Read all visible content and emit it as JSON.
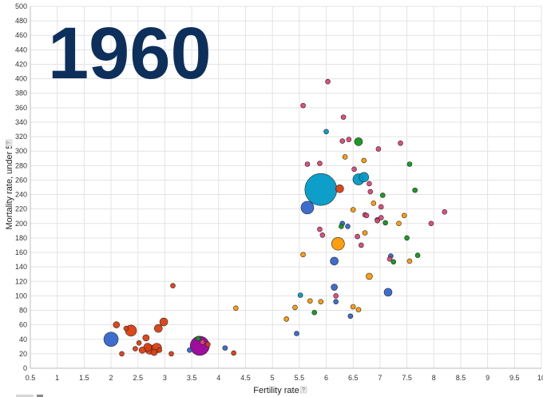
{
  "chart_data": {
    "type": "scatter",
    "year_label": "1960",
    "xlabel": "Fertility rate",
    "ylabel": "Mortality rate, under 5",
    "help_marker": "?",
    "xlim": [
      0.5,
      10
    ],
    "ylim": [
      0,
      500
    ],
    "x_ticks": [
      "0.5",
      "1",
      "1.5",
      "2",
      "2.5",
      "3",
      "3.5",
      "4",
      "4.5",
      "5",
      "5.5",
      "6",
      "6.5",
      "7",
      "7.5",
      "8",
      "8.5",
      "9",
      "9.5",
      "10"
    ],
    "y_ticks": [
      "0",
      "20",
      "40",
      "60",
      "80",
      "100",
      "120",
      "140",
      "160",
      "180",
      "200",
      "220",
      "240",
      "260",
      "280",
      "300",
      "320",
      "340",
      "360",
      "380",
      "400",
      "420",
      "440",
      "460",
      "480",
      "500"
    ],
    "grid": true,
    "colors": {
      "europe": "#dd3d0e",
      "americas": "#3366cc",
      "east_asia": "#0099c6",
      "south_asia": "#990099",
      "sub_saharan_africa": "#dd4477",
      "middle_east_north_africa": "#ff9900",
      "mena_green": "#109618",
      "year": "#0d2f5c"
    },
    "points": [
      {
        "x": 5.9,
        "y": 247,
        "size": 20,
        "color": "#0099c6"
      },
      {
        "x": 3.65,
        "y": 31,
        "size": 12,
        "color": "#990099"
      },
      {
        "x": 2.0,
        "y": 40,
        "size": 9,
        "color": "#3366cc"
      },
      {
        "x": 5.65,
        "y": 222,
        "size": 8,
        "color": "#3366cc"
      },
      {
        "x": 6.6,
        "y": 261,
        "size": 7,
        "color": "#0099c6"
      },
      {
        "x": 6.7,
        "y": 264,
        "size": 6,
        "color": "#0099c6"
      },
      {
        "x": 6.22,
        "y": 172,
        "size": 8,
        "color": "#ff9900"
      },
      {
        "x": 2.37,
        "y": 52,
        "size": 7,
        "color": "#dd3d0e"
      },
      {
        "x": 2.72,
        "y": 26,
        "size": 6,
        "color": "#dd3d0e"
      },
      {
        "x": 2.85,
        "y": 28,
        "size": 6,
        "color": "#dd3d0e"
      },
      {
        "x": 2.98,
        "y": 64,
        "size": 5,
        "color": "#dd3d0e"
      },
      {
        "x": 2.88,
        "y": 55,
        "size": 5,
        "color": "#dd3d0e"
      },
      {
        "x": 2.1,
        "y": 60,
        "size": 4,
        "color": "#dd3d0e"
      },
      {
        "x": 2.2,
        "y": 20,
        "size": 3,
        "color": "#dd3d0e"
      },
      {
        "x": 2.28,
        "y": 55,
        "size": 3,
        "color": "#dd3d0e"
      },
      {
        "x": 2.45,
        "y": 27,
        "size": 3,
        "color": "#dd3d0e"
      },
      {
        "x": 2.52,
        "y": 35,
        "size": 3,
        "color": "#dd3d0e"
      },
      {
        "x": 2.58,
        "y": 25,
        "size": 4,
        "color": "#dd3d0e"
      },
      {
        "x": 2.65,
        "y": 42,
        "size": 4,
        "color": "#dd3d0e"
      },
      {
        "x": 2.68,
        "y": 29,
        "size": 5,
        "color": "#dd3d0e"
      },
      {
        "x": 2.8,
        "y": 22,
        "size": 4,
        "color": "#dd3d0e"
      },
      {
        "x": 2.9,
        "y": 25,
        "size": 3,
        "color": "#dd3d0e"
      },
      {
        "x": 3.15,
        "y": 114,
        "size": 3,
        "color": "#dd3d0e"
      },
      {
        "x": 3.12,
        "y": 20,
        "size": 3,
        "color": "#dd3d0e"
      },
      {
        "x": 4.28,
        "y": 21,
        "size": 3,
        "color": "#dd3d0e"
      },
      {
        "x": 6.25,
        "y": 248,
        "size": 5,
        "color": "#dd3d0e"
      },
      {
        "x": 3.8,
        "y": 33,
        "size": 3,
        "color": "#dd3d0e"
      },
      {
        "x": 3.7,
        "y": 36,
        "size": 3,
        "color": "#dd4477"
      },
      {
        "x": 3.62,
        "y": 41,
        "size": 3,
        "color": "#109618"
      },
      {
        "x": 3.46,
        "y": 25,
        "size": 3,
        "color": "#3366cc"
      },
      {
        "x": 4.12,
        "y": 28,
        "size": 3,
        "color": "#3366cc"
      },
      {
        "x": 4.32,
        "y": 83,
        "size": 3,
        "color": "#ff9900"
      },
      {
        "x": 5.26,
        "y": 68,
        "size": 3,
        "color": "#ff9900"
      },
      {
        "x": 5.42,
        "y": 84,
        "size": 3,
        "color": "#ff9900"
      },
      {
        "x": 5.45,
        "y": 48,
        "size": 3,
        "color": "#3366cc"
      },
      {
        "x": 5.52,
        "y": 101,
        "size": 3,
        "color": "#0099c6"
      },
      {
        "x": 5.57,
        "y": 157,
        "size": 3,
        "color": "#ff9900"
      },
      {
        "x": 5.7,
        "y": 93,
        "size": 3,
        "color": "#ff9900"
      },
      {
        "x": 5.78,
        "y": 77,
        "size": 3,
        "color": "#109618"
      },
      {
        "x": 5.9,
        "y": 92,
        "size": 3,
        "color": "#ff9900"
      },
      {
        "x": 6.0,
        "y": 327,
        "size": 3,
        "color": "#0099c6"
      },
      {
        "x": 6.15,
        "y": 148,
        "size": 5,
        "color": "#3366cc"
      },
      {
        "x": 6.15,
        "y": 112,
        "size": 4,
        "color": "#3366cc"
      },
      {
        "x": 6.18,
        "y": 100,
        "size": 3,
        "color": "#dd4477"
      },
      {
        "x": 6.18,
        "y": 92,
        "size": 3,
        "color": "#3366cc"
      },
      {
        "x": 6.3,
        "y": 200,
        "size": 3,
        "color": "#3366cc"
      },
      {
        "x": 6.28,
        "y": 196,
        "size": 3,
        "color": "#109618"
      },
      {
        "x": 6.4,
        "y": 196,
        "size": 3,
        "color": "#3366cc"
      },
      {
        "x": 6.45,
        "y": 72,
        "size": 3,
        "color": "#3366cc"
      },
      {
        "x": 6.5,
        "y": 85,
        "size": 3,
        "color": "#ff9900"
      },
      {
        "x": 6.6,
        "y": 81,
        "size": 3,
        "color": "#ff9900"
      },
      {
        "x": 6.6,
        "y": 313,
        "size": 5,
        "color": "#109618"
      },
      {
        "x": 6.8,
        "y": 127,
        "size": 4,
        "color": "#ff9900"
      },
      {
        "x": 7.15,
        "y": 105,
        "size": 5,
        "color": "#3366cc"
      },
      {
        "x": 7.25,
        "y": 147,
        "size": 3,
        "color": "#109618"
      },
      {
        "x": 7.5,
        "y": 180,
        "size": 3,
        "color": "#109618"
      },
      {
        "x": 7.55,
        "y": 282,
        "size": 3,
        "color": "#109618"
      },
      {
        "x": 7.65,
        "y": 246,
        "size": 3,
        "color": "#109618"
      },
      {
        "x": 7.7,
        "y": 156,
        "size": 3,
        "color": "#109618"
      },
      {
        "x": 7.05,
        "y": 239,
        "size": 3,
        "color": "#109618"
      },
      {
        "x": 7.1,
        "y": 201,
        "size": 3,
        "color": "#109618"
      },
      {
        "x": 6.95,
        "y": 205,
        "size": 3,
        "color": "#109618"
      },
      {
        "x": 7.2,
        "y": 155,
        "size": 3,
        "color": "#3366cc"
      },
      {
        "x": 7.55,
        "y": 148,
        "size": 3,
        "color": "#ff9900"
      },
      {
        "x": 7.35,
        "y": 200,
        "size": 3,
        "color": "#ff9900"
      },
      {
        "x": 7.45,
        "y": 211,
        "size": 3,
        "color": "#ff9900"
      },
      {
        "x": 6.35,
        "y": 292,
        "size": 3,
        "color": "#ff9900"
      },
      {
        "x": 6.5,
        "y": 219,
        "size": 3,
        "color": "#ff9900"
      },
      {
        "x": 6.7,
        "y": 287,
        "size": 3,
        "color": "#ff9900"
      },
      {
        "x": 6.72,
        "y": 187,
        "size": 3,
        "color": "#ff9900"
      },
      {
        "x": 6.88,
        "y": 228,
        "size": 3,
        "color": "#ff9900"
      },
      {
        "x": 6.03,
        "y": 396,
        "size": 3,
        "color": "#dd4477"
      },
      {
        "x": 5.57,
        "y": 363,
        "size": 3,
        "color": "#dd4477"
      },
      {
        "x": 6.32,
        "y": 347,
        "size": 3,
        "color": "#dd4477"
      },
      {
        "x": 6.42,
        "y": 316,
        "size": 3,
        "color": "#dd4477"
      },
      {
        "x": 6.3,
        "y": 314,
        "size": 3,
        "color": "#dd4477"
      },
      {
        "x": 6.97,
        "y": 303,
        "size": 3,
        "color": "#dd4477"
      },
      {
        "x": 7.38,
        "y": 311,
        "size": 3,
        "color": "#dd4477"
      },
      {
        "x": 5.65,
        "y": 282,
        "size": 3,
        "color": "#dd4477"
      },
      {
        "x": 5.88,
        "y": 283,
        "size": 3,
        "color": "#dd4477"
      },
      {
        "x": 6.52,
        "y": 275,
        "size": 3,
        "color": "#dd4477"
      },
      {
        "x": 6.8,
        "y": 255,
        "size": 3,
        "color": "#dd4477"
      },
      {
        "x": 6.82,
        "y": 244,
        "size": 3,
        "color": "#dd4477"
      },
      {
        "x": 6.72,
        "y": 212,
        "size": 3,
        "color": "#dd4477"
      },
      {
        "x": 6.75,
        "y": 211,
        "size": 3,
        "color": "#dd4477"
      },
      {
        "x": 6.95,
        "y": 204,
        "size": 3,
        "color": "#dd4477"
      },
      {
        "x": 7.02,
        "y": 208,
        "size": 3,
        "color": "#dd4477"
      },
      {
        "x": 7.02,
        "y": 223,
        "size": 3,
        "color": "#dd4477"
      },
      {
        "x": 5.88,
        "y": 192,
        "size": 3,
        "color": "#dd4477"
      },
      {
        "x": 5.93,
        "y": 184,
        "size": 3,
        "color": "#dd4477"
      },
      {
        "x": 6.58,
        "y": 182,
        "size": 3,
        "color": "#dd4477"
      },
      {
        "x": 6.65,
        "y": 170,
        "size": 3,
        "color": "#dd4477"
      },
      {
        "x": 7.18,
        "y": 151,
        "size": 3,
        "color": "#dd4477"
      },
      {
        "x": 7.95,
        "y": 200,
        "size": 3,
        "color": "#dd4477"
      },
      {
        "x": 8.2,
        "y": 216,
        "size": 3,
        "color": "#dd4477"
      }
    ]
  }
}
